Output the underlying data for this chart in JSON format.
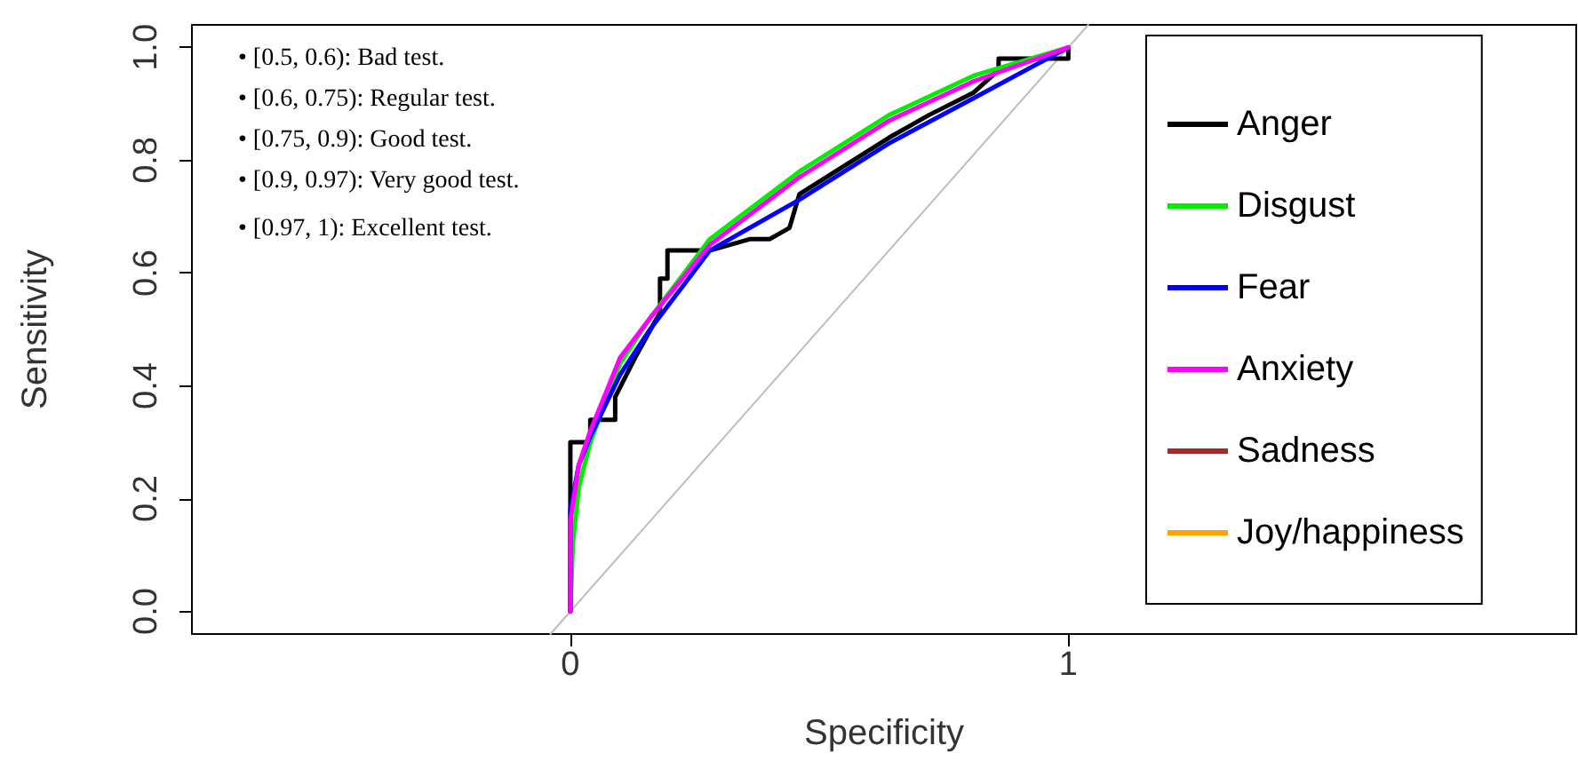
{
  "chart_data": {
    "type": "line",
    "xlabel": "Specificity",
    "ylabel": "Sensitivity",
    "xlim": [
      -0.76,
      2.02
    ],
    "ylim": [
      -0.04,
      1.04
    ],
    "xticks": [
      0,
      1
    ],
    "yticks": [
      {
        "value": 0,
        "label": "0.0"
      },
      0.2,
      0.4,
      0.6,
      0.8,
      {
        "value": 1,
        "label": "1.0"
      }
    ],
    "grid": false,
    "legend": "right",
    "marker": "none",
    "line_style": "solid",
    "annotations": [
      "• [0.5, 0.6): Bad test.",
      "• [0.6, 0.75): Regular test.",
      "• [0.75, 0.9): Good test.",
      "• [0.9, 0.97): Very good test.",
      "• [0.97, 1): Excellent test."
    ],
    "series": [
      {
        "color": "#bebebe",
        "x": [
          -0.04,
          1.04
        ],
        "values": [
          -0.04,
          1.04
        ]
      },
      {
        "name": "Anger",
        "color": "#000000",
        "x": [
          0,
          0,
          0.04,
          0.04,
          0.09,
          0.09,
          0.13,
          0.18,
          0.18,
          0.195,
          0.195,
          0.28,
          0.36,
          0.4,
          0.44,
          0.46,
          0.55,
          0.64,
          0.72,
          0.81,
          0.86,
          0.86,
          1.0,
          1.0
        ],
        "values": [
          0,
          0.3,
          0.3,
          0.34,
          0.34,
          0.38,
          0.45,
          0.53,
          0.59,
          0.59,
          0.64,
          0.64,
          0.66,
          0.66,
          0.68,
          0.74,
          0.79,
          0.84,
          0.88,
          0.92,
          0.96,
          0.98,
          0.98,
          1.0
        ]
      },
      {
        "name": "Disgust",
        "color": "#00ee00",
        "x": [
          0,
          0.005,
          0.017,
          0.04,
          0.1,
          0.16,
          0.28,
          0.46,
          0.64,
          0.81,
          1.0
        ],
        "values": [
          0,
          0.12,
          0.22,
          0.3,
          0.44,
          0.52,
          0.66,
          0.78,
          0.88,
          0.95,
          1.0
        ]
      },
      {
        "name": "Fear",
        "color": "#0000ff",
        "x": [
          0,
          0,
          0.017,
          0.04,
          0.1,
          0.16,
          0.28,
          0.46,
          0.64,
          0.81,
          1.0
        ],
        "values": [
          0,
          0.18,
          0.26,
          0.31,
          0.42,
          0.5,
          0.64,
          0.73,
          0.83,
          0.91,
          1.0
        ]
      },
      {
        "name": "Anxiety",
        "color": "#ff00ff",
        "x": [
          0,
          0,
          0.017,
          0.04,
          0.1,
          0.16,
          0.28,
          0.46,
          0.64,
          0.81,
          1.0
        ],
        "values": [
          0,
          0.16,
          0.26,
          0.32,
          0.45,
          0.52,
          0.65,
          0.77,
          0.87,
          0.94,
          1.0
        ]
      },
      {
        "name": "Sadness",
        "color": "#a52a2a"
      },
      {
        "name": "Joy/happiness",
        "color": "#ffa500"
      }
    ]
  }
}
